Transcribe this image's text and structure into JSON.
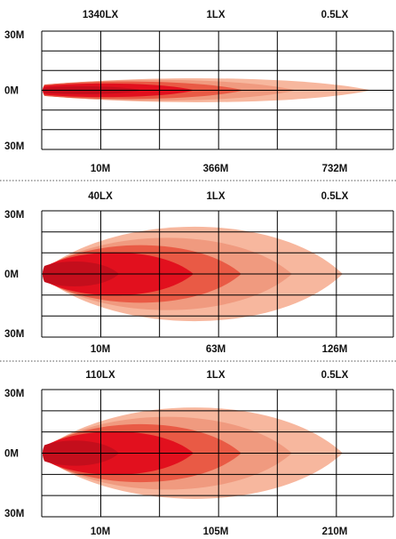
{
  "colors": {
    "grid": "#000000",
    "beam_bands": [
      "#F7B79E",
      "#F09A7F",
      "#E95A45",
      "#E2101E",
      "#C40E1C"
    ],
    "separator": "#555555"
  },
  "chart_data": [
    {
      "type": "beam-pattern",
      "top_labels": [
        "1340LX",
        "1LX",
        "0.5LX"
      ],
      "bottom_labels": [
        "10M",
        "366M",
        "732M"
      ],
      "y_labels": [
        "30M",
        "0M",
        "30M"
      ],
      "grid": true,
      "bands": [
        {
          "reach_fraction": 1.0,
          "half_width_fraction": 0.13
        },
        {
          "reach_fraction": 0.77,
          "half_width_fraction": 0.11
        },
        {
          "reach_fraction": 0.61,
          "half_width_fraction": 0.09
        },
        {
          "reach_fraction": 0.46,
          "half_width_fraction": 0.07
        },
        {
          "reach_fraction": 0.3,
          "half_width_fraction": 0.04
        }
      ]
    },
    {
      "type": "beam-pattern",
      "top_labels": [
        "40LX",
        "1LX",
        "0.5LX"
      ],
      "bottom_labels": [
        "10M",
        "63M",
        "126M"
      ],
      "y_labels": [
        "30M",
        "0M",
        "30M"
      ],
      "grid": true,
      "bands": [
        {
          "reach_fraction": 1.0,
          "half_width_fraction": 0.5
        },
        {
          "reach_fraction": 0.83,
          "half_width_fraction": 0.38
        },
        {
          "reach_fraction": 0.66,
          "half_width_fraction": 0.3
        },
        {
          "reach_fraction": 0.5,
          "half_width_fraction": 0.22
        },
        {
          "reach_fraction": 0.25,
          "half_width_fraction": 0.12
        }
      ]
    },
    {
      "type": "beam-pattern",
      "top_labels": [
        "110LX",
        "1LX",
        "0.5LX"
      ],
      "bottom_labels": [
        "10M",
        "105M",
        "210M"
      ],
      "y_labels": [
        "30M",
        "0M",
        "30M"
      ],
      "grid": true,
      "bands": [
        {
          "reach_fraction": 1.0,
          "half_width_fraction": 0.48
        },
        {
          "reach_fraction": 0.83,
          "half_width_fraction": 0.38
        },
        {
          "reach_fraction": 0.66,
          "half_width_fraction": 0.3
        },
        {
          "reach_fraction": 0.5,
          "half_width_fraction": 0.22
        },
        {
          "reach_fraction": 0.25,
          "half_width_fraction": 0.12
        }
      ]
    }
  ]
}
